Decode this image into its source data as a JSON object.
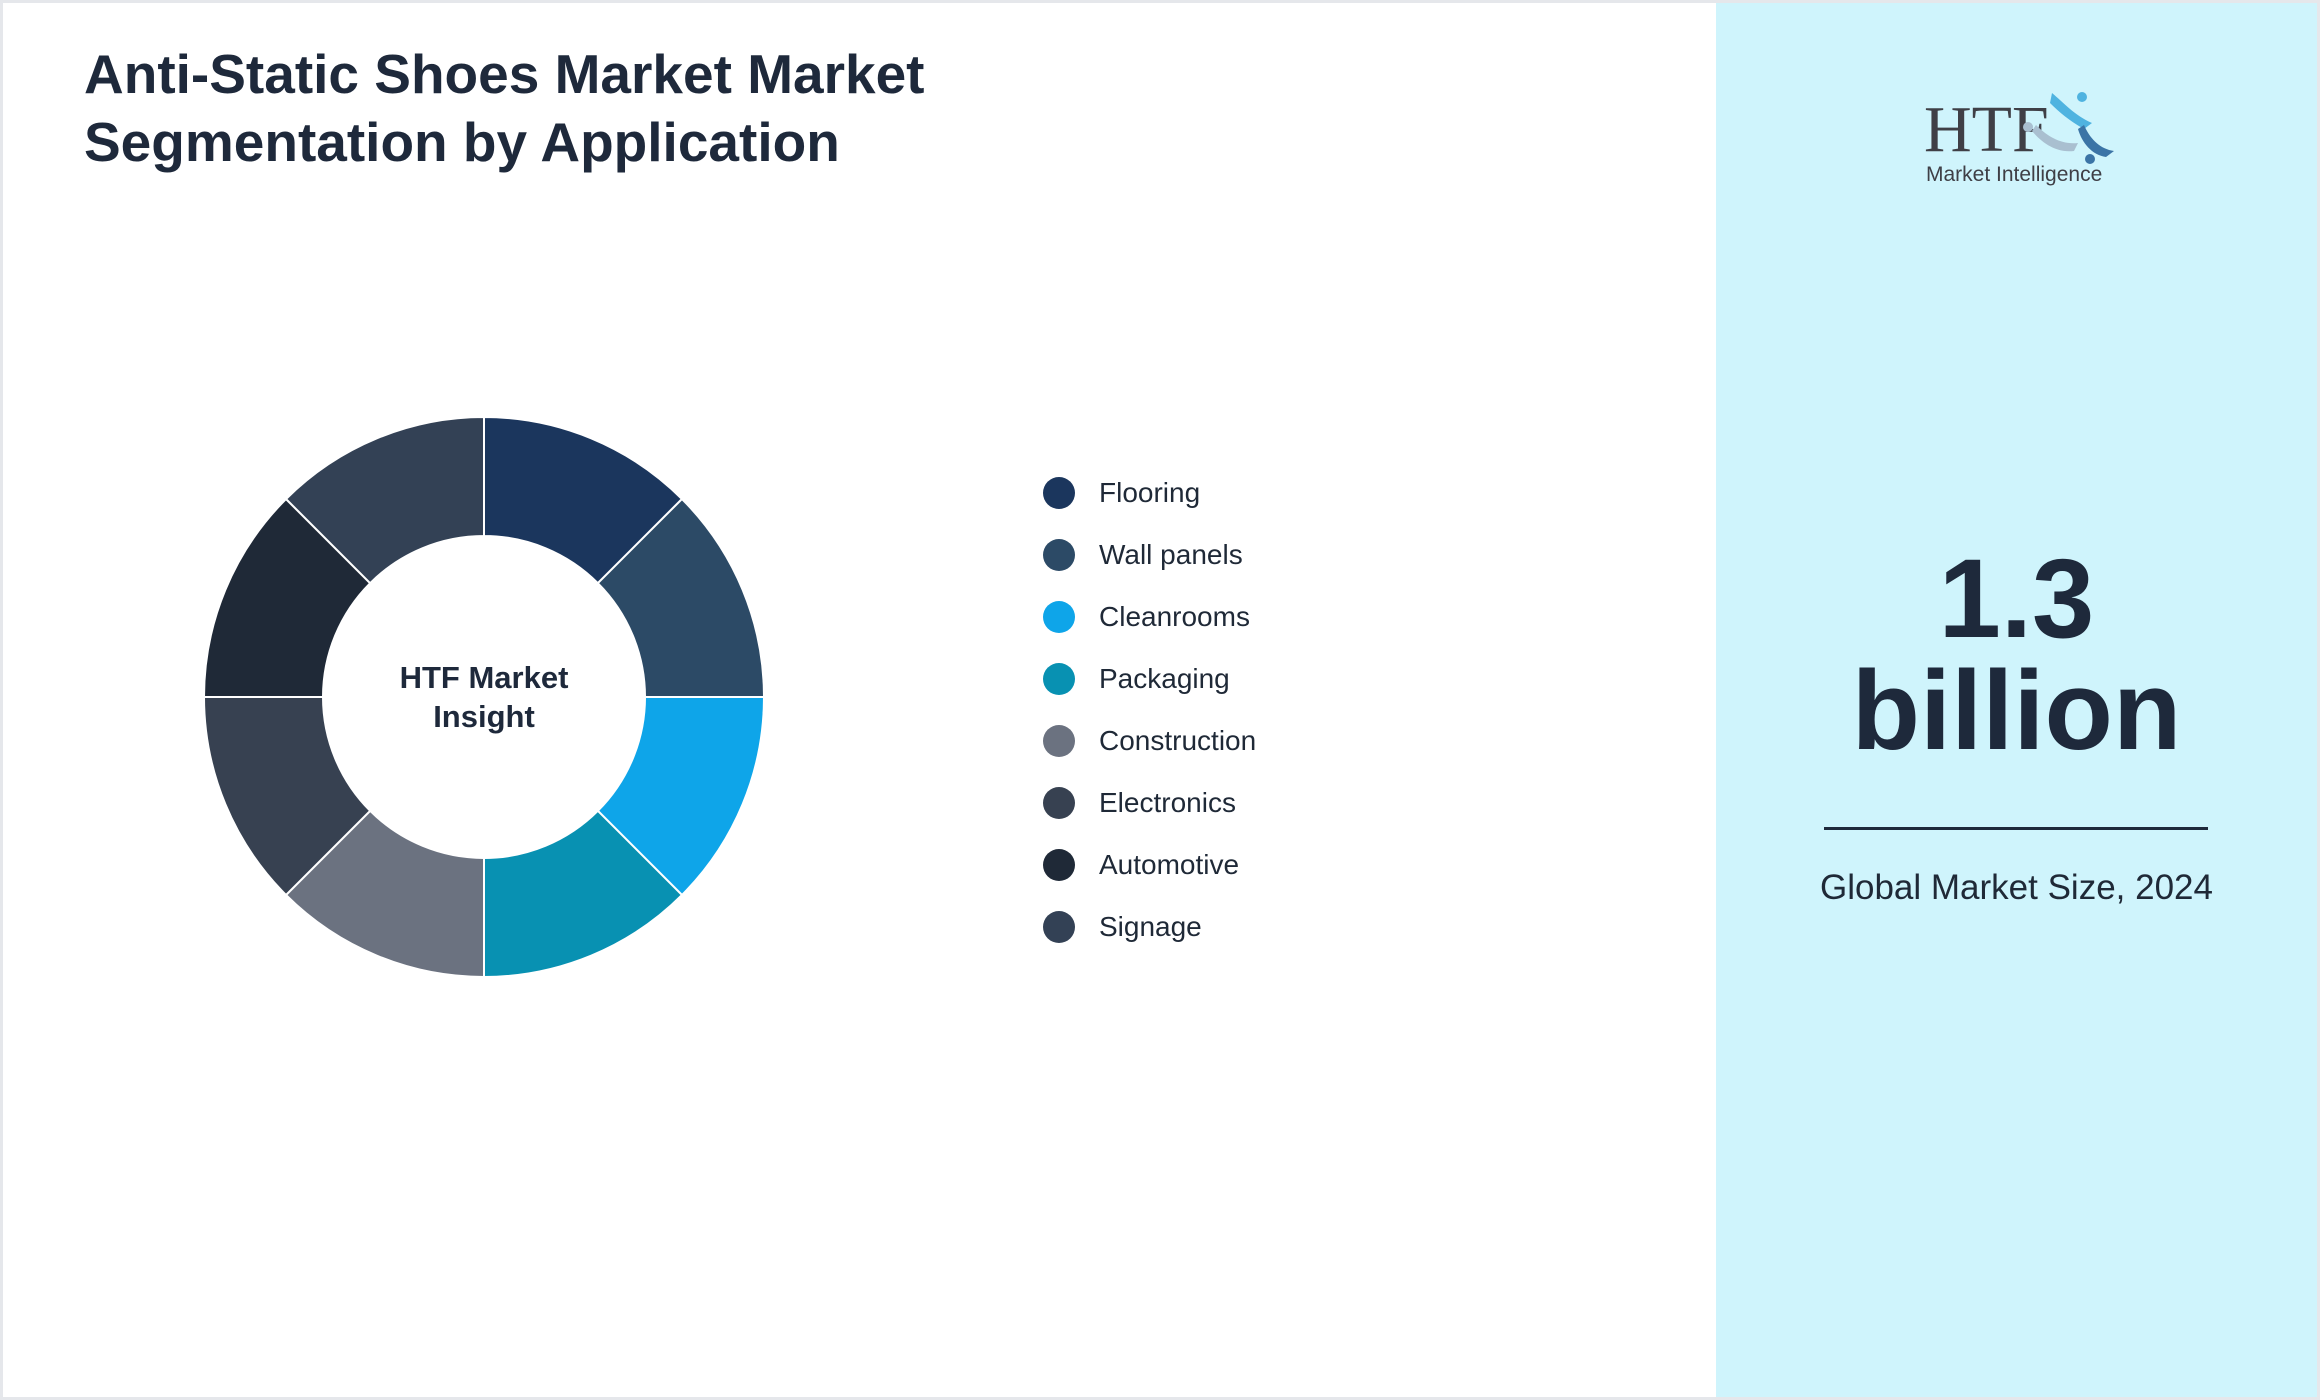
{
  "title": "Anti-Static Shoes Market Market Segmentation by Application",
  "chart_data": {
    "type": "pie",
    "variant": "donut",
    "center_label": "HTF Market Insight",
    "legend_position": "right",
    "categories": [
      "Flooring",
      "Wall panels",
      "Cleanrooms",
      "Packaging",
      "Construction",
      "Electronics",
      "Automotive",
      "Signage"
    ],
    "values": [
      12.5,
      12.5,
      12.5,
      12.5,
      12.5,
      12.5,
      12.5,
      12.5
    ],
    "colors": [
      "#1b365d",
      "#2c4a66",
      "#0ea5e9",
      "#0891b2",
      "#6b7280",
      "#374151",
      "#1f2937",
      "#334155"
    ]
  },
  "panel": {
    "value": "1.3 billion",
    "value_line1": "1.3",
    "value_line2": "billion",
    "caption": "Global Market Size, 2024",
    "background": "#cff4fc",
    "logo": {
      "text": "HTF",
      "subtext": "Market Intelligence"
    }
  }
}
